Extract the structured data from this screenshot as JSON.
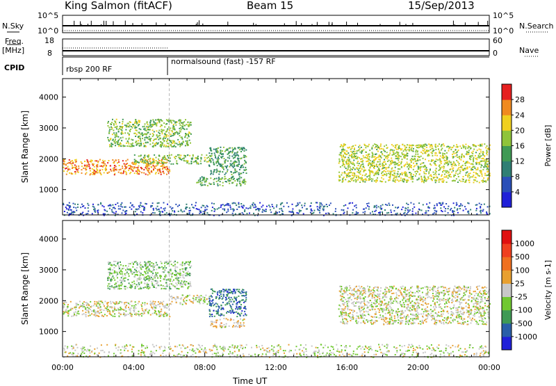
{
  "header": {
    "station": "King Salmon (fitACF)",
    "beam": "Beam 15",
    "date": "15/Sep/2013"
  },
  "side_labels": {
    "nsky": "N.Sky",
    "freq_line1": "Freq.",
    "freq_line2": "[MHz]",
    "cpid": "CPID",
    "nsearch": "N.Search",
    "nave": "Nave"
  },
  "nsky_axis": {
    "left_top": "10^5",
    "left_bottom": "10^0",
    "right_top": "10^5",
    "right_bottom": "10^0"
  },
  "freq_axis": {
    "left_top": "18",
    "left_bottom": "8",
    "right_top": "60",
    "right_bottom": "0"
  },
  "cpid_segments": [
    {
      "label": "rbsp 200 RF",
      "start_hour": 0,
      "end_hour": 6
    },
    {
      "label": "normalsound (fast) -157 RF",
      "start_hour": 6,
      "end_hour": 24
    }
  ],
  "x_axis": {
    "label": "Time UT",
    "ticks": [
      "00:00",
      "04:00",
      "08:00",
      "12:00",
      "16:00",
      "20:00",
      "00:00"
    ]
  },
  "chart_data": [
    {
      "type": "heatmap",
      "title": "",
      "xlabel": "Time UT",
      "ylabel": "Slant Range [km]",
      "xlim_hours": [
        0,
        24
      ],
      "ylim": [
        180,
        4600
      ],
      "y_ticks": [
        "1000",
        "2000",
        "3000",
        "4000"
      ],
      "colorbar": {
        "label": "Power [dB]",
        "ticks": [
          "4",
          "8",
          "12",
          "16",
          "20",
          "24",
          "28"
        ],
        "range": [
          0,
          30
        ],
        "colors": [
          "#2020d8",
          "#2a4fb8",
          "#2f7f74",
          "#3f9a55",
          "#8fc43a",
          "#f0d020",
          "#f08a20",
          "#e62020"
        ]
      },
      "echo_regions": [
        {
          "t0": 0,
          "t1": 6,
          "r0": 1500,
          "r1": 2000,
          "value": 24
        },
        {
          "t0": 4,
          "t1": 8.3,
          "r0": 1850,
          "r1": 2150,
          "value": 16
        },
        {
          "t0": 2.5,
          "t1": 7.2,
          "r0": 2400,
          "r1": 3300,
          "value": 16
        },
        {
          "t0": 7.5,
          "t1": 10.3,
          "r0": 1150,
          "r1": 1450,
          "value": 14
        },
        {
          "t0": 8.2,
          "t1": 10.3,
          "r0": 1500,
          "r1": 2400,
          "value": 12
        },
        {
          "t0": 15.5,
          "t1": 24,
          "r0": 1250,
          "r1": 2500,
          "value": 18
        },
        {
          "t0": 0,
          "t1": 24,
          "r0": 180,
          "r1": 600,
          "value": 6
        }
      ]
    },
    {
      "type": "heatmap",
      "title": "",
      "xlabel": "Time UT",
      "ylabel": "Slant Range [km]",
      "xlim_hours": [
        0,
        24
      ],
      "ylim": [
        180,
        4600
      ],
      "y_ticks": [
        "1000",
        "2000",
        "3000",
        "4000"
      ],
      "colorbar": {
        "label": "Velocity [m s-1]",
        "ticks": [
          "1000",
          "500",
          "100",
          "25",
          "-25",
          "-100",
          "-500",
          "-1000"
        ],
        "range": [
          -1000,
          1000
        ],
        "colors": [
          "#2020d8",
          "#2a5fa8",
          "#3f9a55",
          "#70c830",
          "#c8c8c8",
          "#e8a030",
          "#f07020",
          "#f04020",
          "#e01010"
        ]
      },
      "echo_regions": [
        {
          "t0": 0,
          "t1": 6,
          "r0": 1500,
          "r1": 2000,
          "value": 0
        },
        {
          "t0": 6,
          "t1": 8.3,
          "r0": 1900,
          "r1": 2200,
          "value": 0
        },
        {
          "t0": 2.5,
          "t1": 7.2,
          "r0": 2400,
          "r1": 3300,
          "value": -200
        },
        {
          "t0": 8.2,
          "t1": 10.3,
          "r0": 1500,
          "r1": 2400,
          "value": -600
        },
        {
          "t0": 8.3,
          "t1": 10.2,
          "r0": 1150,
          "r1": 1450,
          "value": 120
        },
        {
          "t0": 15.5,
          "t1": 24,
          "r0": 1250,
          "r1": 2500,
          "value": 0
        },
        {
          "t0": 0,
          "t1": 24,
          "r0": 180,
          "r1": 600,
          "value": -50
        }
      ]
    }
  ]
}
